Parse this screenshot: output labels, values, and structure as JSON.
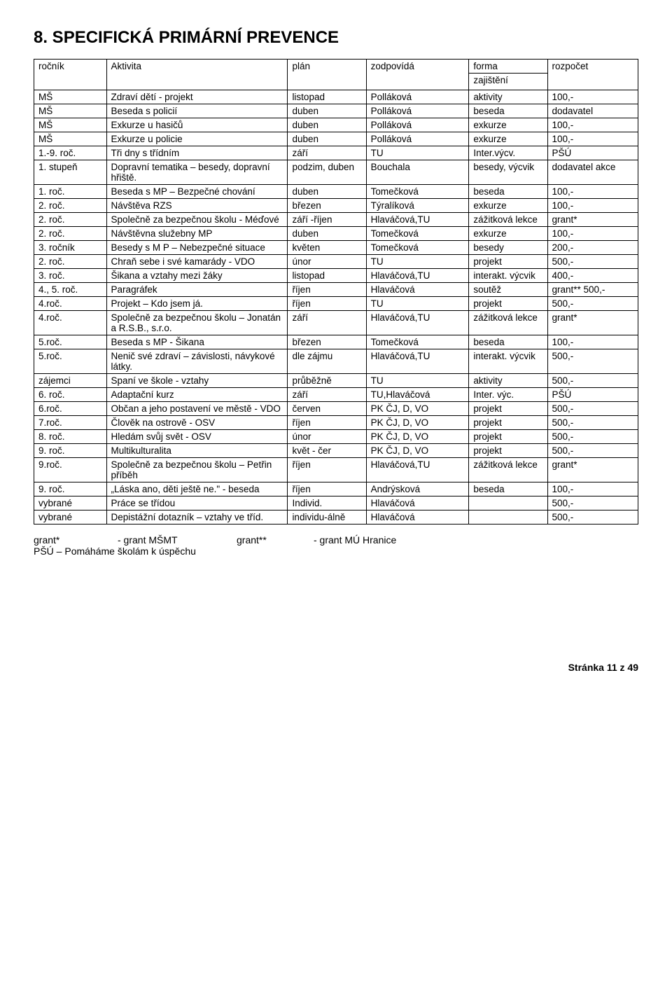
{
  "title": "8. SPECIFICKÁ PRIMÁRNÍ PREVENCE",
  "columns": [
    "ročník",
    "Aktivita",
    "plán",
    "zodpovídá",
    "forma zajištění",
    "rozpočet"
  ],
  "rows": [
    [
      "MŠ",
      "Zdraví dětí - projekt",
      "listopad",
      "Polláková",
      "aktivity",
      "100,-"
    ],
    [
      "MŠ",
      "Beseda s policií",
      "duben",
      "Polláková",
      "beseda",
      "dodavatel"
    ],
    [
      "MŠ",
      "Exkurze u hasičů",
      "duben",
      "Polláková",
      "exkurze",
      "100,-"
    ],
    [
      "MŠ",
      "Exkurze u policie",
      "duben",
      "Polláková",
      "exkurze",
      "100,-"
    ],
    [
      "1.-9. roč.",
      "Tři dny s třídním",
      "září",
      "TU",
      "Inter.výcv.",
      "PŠÚ"
    ],
    [
      "1. stupeň",
      "Dopravní tematika – besedy, dopravní hřiště.",
      "podzim, duben",
      "Bouchala",
      "besedy, výcvik",
      "dodavatel akce"
    ],
    [
      "1. roč.",
      "Beseda s MP – Bezpečné chování",
      "duben",
      "Tomečková",
      "beseda",
      "100,-"
    ],
    [
      "2. roč.",
      "Návštěva RZS",
      "březen",
      "Týralíková",
      "exkurze",
      "100,-"
    ],
    [
      "2. roč.",
      "Společně za bezpečnou školu - Méďové",
      "září -říjen",
      "Hlaváčová,TU",
      "zážitková lekce",
      "grant*"
    ],
    [
      "2. roč.",
      "Návštěvna služebny MP",
      "duben",
      "Tomečková",
      "exkurze",
      "100,-"
    ],
    [
      "3. ročník",
      "Besedy s M P – Nebezpečné situace",
      "květen",
      "Tomečková",
      "besedy",
      "200,-"
    ],
    [
      "2. roč.",
      "Chraň sebe i své kamarády - VDO",
      "únor",
      "TU",
      "projekt",
      "500,-"
    ],
    [
      "3. roč.",
      "Šikana a vztahy mezi žáky",
      "listopad",
      "Hlaváčová,TU",
      "interakt. výcvik",
      "400,-"
    ],
    [
      "4., 5. roč.",
      "Paragráfek",
      "říjen",
      "Hlaváčová",
      "soutěž",
      "grant** 500,-"
    ],
    [
      "4.roč.",
      "Projekt – Kdo jsem já.",
      "říjen",
      "TU",
      "projekt",
      "500,-"
    ],
    [
      "4.roč.",
      "Společně za bezpečnou školu – Jonatán a R.S.B., s.r.o.",
      "září",
      "Hlaváčová,TU",
      "zážitková lekce",
      "grant*"
    ],
    [
      "5.roč.",
      "Beseda s MP - Šikana",
      "březen",
      "Tomečková",
      "beseda",
      "100,-"
    ],
    [
      "5.roč.",
      "Nenič své zdraví – závislosti, návykové látky.",
      "dle zájmu",
      "Hlaváčová,TU",
      "interakt. výcvik",
      "500,-"
    ],
    [
      "zájemci",
      "Spaní ve škole - vztahy",
      "průběžně",
      "TU",
      "aktivity",
      "500,-"
    ],
    [
      "6. roč.",
      "Adaptační kurz",
      "září",
      "TU,Hlaváčová",
      "Inter. výc.",
      "PŠÚ"
    ],
    [
      "6.roč.",
      "Občan a jeho postavení ve městě - VDO",
      "červen",
      "PK ČJ, D, VO",
      "projekt",
      "500,-"
    ],
    [
      "7.roč.",
      "Člověk na ostrově - OSV",
      "říjen",
      "PK ČJ, D, VO",
      "projekt",
      "500,-"
    ],
    [
      "8. roč.",
      "Hledám svůj svět - OSV",
      "únor",
      "PK ČJ, D, VO",
      "projekt",
      "500,-"
    ],
    [
      "9. roč.",
      "Multikulturalita",
      "květ - čer",
      "PK ČJ, D, VO",
      "projekt",
      "500,-"
    ],
    [
      "9.roč.",
      "Společně za bezpečnou školu – Petřin příběh",
      "říjen",
      "Hlaváčová,TU",
      "zážitková lekce",
      "grant*"
    ],
    [
      "9. roč.",
      "„Láska ano, děti ještě ne.\" - beseda",
      "říjen",
      "Andrýsková",
      "beseda",
      "100,-"
    ],
    [
      "vybrané",
      "Práce se třídou",
      "Individ.",
      "Hlaváčová",
      "",
      "500,-"
    ],
    [
      "vybrané",
      "Depistážní dotazník – vztahy ve tříd.",
      "individu-álně",
      "Hlaváčová",
      "",
      "500,-"
    ]
  ],
  "legend": {
    "grant1_key": "grant*",
    "grant1_val": "- grant MŠMT",
    "grant2_key": "grant**",
    "grant2_val": "- grant MÚ Hranice",
    "psu": "PŠÚ – Pomáháme školám k úspěchu"
  },
  "footer": "Stránka 11 z 49"
}
